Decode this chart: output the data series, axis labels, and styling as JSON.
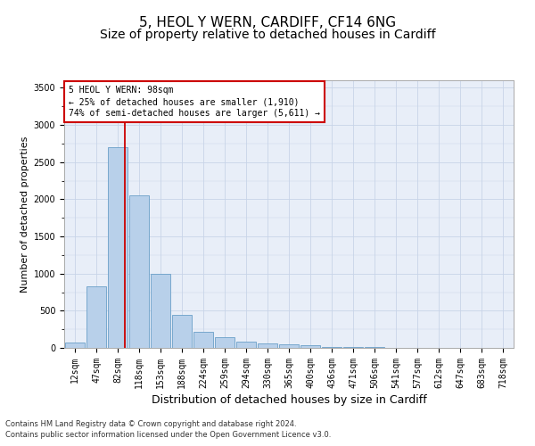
{
  "title1": "5, HEOL Y WERN, CARDIFF, CF14 6NG",
  "title2": "Size of property relative to detached houses in Cardiff",
  "xlabel": "Distribution of detached houses by size in Cardiff",
  "ylabel": "Number of detached properties",
  "categories": [
    "12sqm",
    "47sqm",
    "82sqm",
    "118sqm",
    "153sqm",
    "188sqm",
    "224sqm",
    "259sqm",
    "294sqm",
    "330sqm",
    "365sqm",
    "400sqm",
    "436sqm",
    "471sqm",
    "506sqm",
    "541sqm",
    "577sqm",
    "612sqm",
    "647sqm",
    "683sqm",
    "718sqm"
  ],
  "values": [
    75,
    830,
    2700,
    2050,
    1000,
    450,
    215,
    140,
    80,
    60,
    45,
    35,
    18,
    12,
    8,
    5,
    3,
    2,
    1,
    1,
    0
  ],
  "bar_color": "#b8d0ea",
  "bar_edge_color": "#6a9fc8",
  "vline_x_index": 2.35,
  "vline_color": "#cc0000",
  "ylim": [
    0,
    3600
  ],
  "yticks": [
    0,
    500,
    1000,
    1500,
    2000,
    2500,
    3000,
    3500
  ],
  "annotation_text": "5 HEOL Y WERN: 98sqm\n← 25% of detached houses are smaller (1,910)\n74% of semi-detached houses are larger (5,611) →",
  "annotation_box_color": "#ffffff",
  "annotation_box_edge": "#cc0000",
  "footer1": "Contains HM Land Registry data © Crown copyright and database right 2024.",
  "footer2": "Contains public sector information licensed under the Open Government Licence v3.0.",
  "plot_bg_color": "#e8eef8",
  "fig_bg_color": "#ffffff",
  "grid_color": "#c8d4e8",
  "title1_fontsize": 11,
  "title2_fontsize": 10,
  "xlabel_fontsize": 9,
  "ylabel_fontsize": 8,
  "tick_fontsize": 7,
  "annot_fontsize": 7,
  "footer_fontsize": 6
}
